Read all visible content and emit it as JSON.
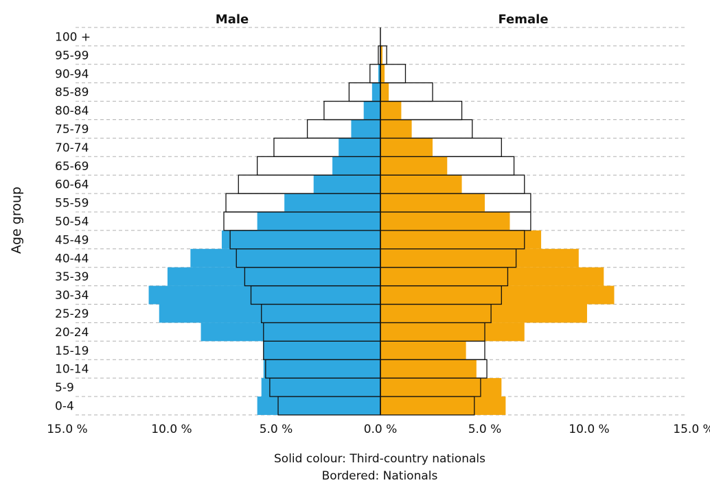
{
  "chart_data": {
    "type": "bar",
    "subtype": "population-pyramid",
    "ylabel": "Age group",
    "headers": {
      "left": "Male",
      "right": "Female"
    },
    "categories": [
      "0-4",
      "5-9",
      "10-14",
      "15-19",
      "20-24",
      "25-29",
      "30-34",
      "35-39",
      "40-44",
      "45-49",
      "50-54",
      "55-59",
      "60-64",
      "65-69",
      "70-74",
      "75-79",
      "80-84",
      "85-89",
      "90-94",
      "95-99",
      "100 +"
    ],
    "xlim": [
      -15,
      15
    ],
    "xticks": [
      -15,
      -10,
      -5,
      0,
      5,
      10,
      15
    ],
    "xtick_labels": [
      "15.0 %",
      "10.0 %",
      "5.0 %",
      "0.0 %",
      "5.0 %",
      "10.0 %",
      "15.0 %"
    ],
    "series": [
      {
        "name": "Third-country nationals",
        "side": "male",
        "style": "solid",
        "values": [
          5.9,
          5.7,
          5.6,
          5.6,
          8.6,
          10.6,
          11.1,
          10.2,
          9.1,
          7.6,
          5.9,
          4.6,
          3.2,
          2.3,
          2.0,
          1.4,
          0.8,
          0.4,
          0.1,
          0.0,
          0.0
        ]
      },
      {
        "name": "Nationals",
        "side": "male",
        "style": "bordered",
        "values": [
          4.9,
          5.3,
          5.5,
          5.6,
          5.6,
          5.7,
          6.2,
          6.5,
          6.9,
          7.2,
          7.5,
          7.4,
          6.8,
          5.9,
          5.1,
          3.5,
          2.7,
          1.5,
          0.5,
          0.1,
          0.0
        ]
      },
      {
        "name": "Third-country nationals",
        "side": "female",
        "style": "solid",
        "values": [
          6.0,
          5.8,
          4.6,
          4.1,
          6.9,
          9.9,
          11.2,
          10.7,
          9.5,
          7.7,
          6.2,
          5.0,
          3.9,
          3.2,
          2.5,
          1.5,
          1.0,
          0.4,
          0.2,
          0.1,
          0.0
        ]
      },
      {
        "name": "Nationals",
        "side": "female",
        "style": "bordered",
        "values": [
          4.5,
          4.8,
          5.1,
          5.0,
          5.0,
          5.3,
          5.8,
          6.1,
          6.5,
          6.9,
          7.2,
          7.2,
          6.9,
          6.4,
          5.8,
          4.4,
          3.9,
          2.5,
          1.2,
          0.3,
          0.0
        ]
      }
    ],
    "colors": {
      "male": "#2fa8e0",
      "female": "#f5a70c",
      "border": "#111111",
      "grid": "#b0b0b0"
    },
    "grid": true,
    "notes": [
      "Solid colour: Third-country nationals",
      "Bordered: Nationals"
    ]
  }
}
